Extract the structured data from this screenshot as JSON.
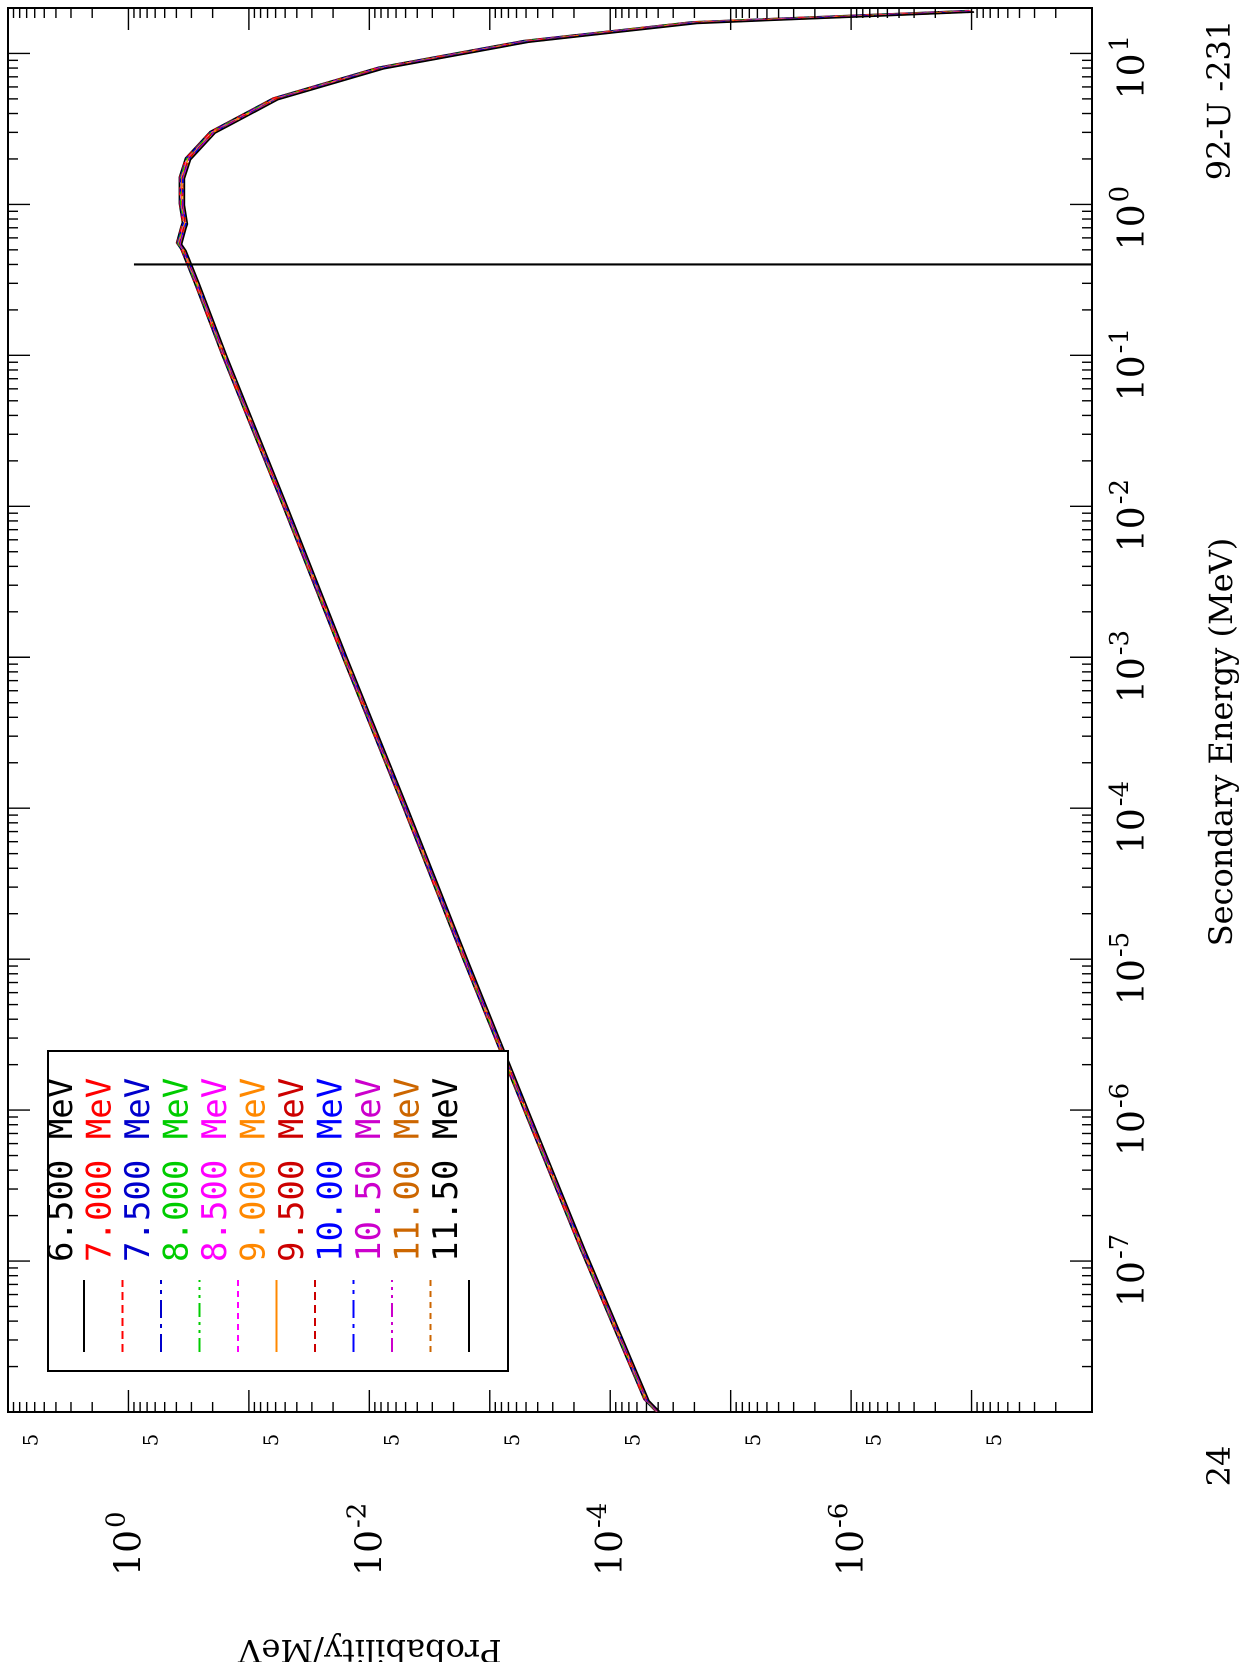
{
  "chart_data": {
    "type": "line",
    "orientation": "rotated-90-clockwise",
    "title": "92-U -231",
    "corner_label": "24",
    "xlabel": "Secondary Energy (MeV)",
    "ylabel": "Probability/MeV",
    "x_scale": "log",
    "y_scale": "log",
    "xlim": [
      1e-08,
      20
    ],
    "ylim": [
      1e-08,
      10
    ],
    "x_ticks": [
      {
        "base": "10",
        "exp": "-7"
      },
      {
        "base": "10",
        "exp": "-6"
      },
      {
        "base": "10",
        "exp": "-5"
      },
      {
        "base": "10",
        "exp": "-4"
      },
      {
        "base": "10",
        "exp": "-3"
      },
      {
        "base": "10",
        "exp": "-2"
      },
      {
        "base": "10",
        "exp": "-1"
      },
      {
        "base": "10",
        "exp": "0"
      },
      {
        "base": "10",
        "exp": "1"
      }
    ],
    "y_ticks": [
      {
        "base": "10",
        "exp": "-6"
      },
      {
        "base": "10",
        "exp": "-4"
      },
      {
        "base": "10",
        "exp": "-2"
      },
      {
        "base": "10",
        "exp": "0"
      }
    ],
    "y_minor_label": "5",
    "legend_position": "lower-left",
    "legend_colors": [
      "#000000",
      "#ff0000",
      "#0000cc",
      "#00cc00",
      "#ff00ff",
      "#ff8800",
      "#cc0000",
      "#0000ff",
      "#cc00cc",
      "#cc6600",
      "#000000"
    ],
    "series": [
      {
        "name": "6.500 MeV"
      },
      {
        "name": "7.000 MeV"
      },
      {
        "name": "7.500 MeV"
      },
      {
        "name": "8.000 MeV"
      },
      {
        "name": "8.500 MeV"
      },
      {
        "name": "9.000 MeV"
      },
      {
        "name": "9.500 MeV"
      },
      {
        "name": "10.00 MeV"
      },
      {
        "name": "10.50 MeV"
      },
      {
        "name": "11.00 MeV"
      },
      {
        "name": "11.50 MeV"
      }
    ],
    "curve": {
      "x": [
        1e-08,
        1.2e-08,
        1.2e-07,
        1e-06,
        1e-05,
        0.0001,
        0.001,
        0.01,
        0.1,
        0.3,
        0.5,
        0.55,
        0.7,
        0.75,
        1,
        1.5,
        2,
        3,
        5,
        8,
        12,
        16,
        19
      ],
      "y": [
        4e-05,
        5e-05,
        0.00017,
        0.0005,
        0.0016,
        0.005,
        0.016,
        0.05,
        0.16,
        0.27,
        0.35,
        0.38,
        0.35,
        0.34,
        0.36,
        0.36,
        0.32,
        0.2,
        0.06,
        0.008,
        0.0005,
        2e-05,
        1e-07
      ]
    },
    "spike": {
      "x": 0.4,
      "y": 0.9
    }
  }
}
